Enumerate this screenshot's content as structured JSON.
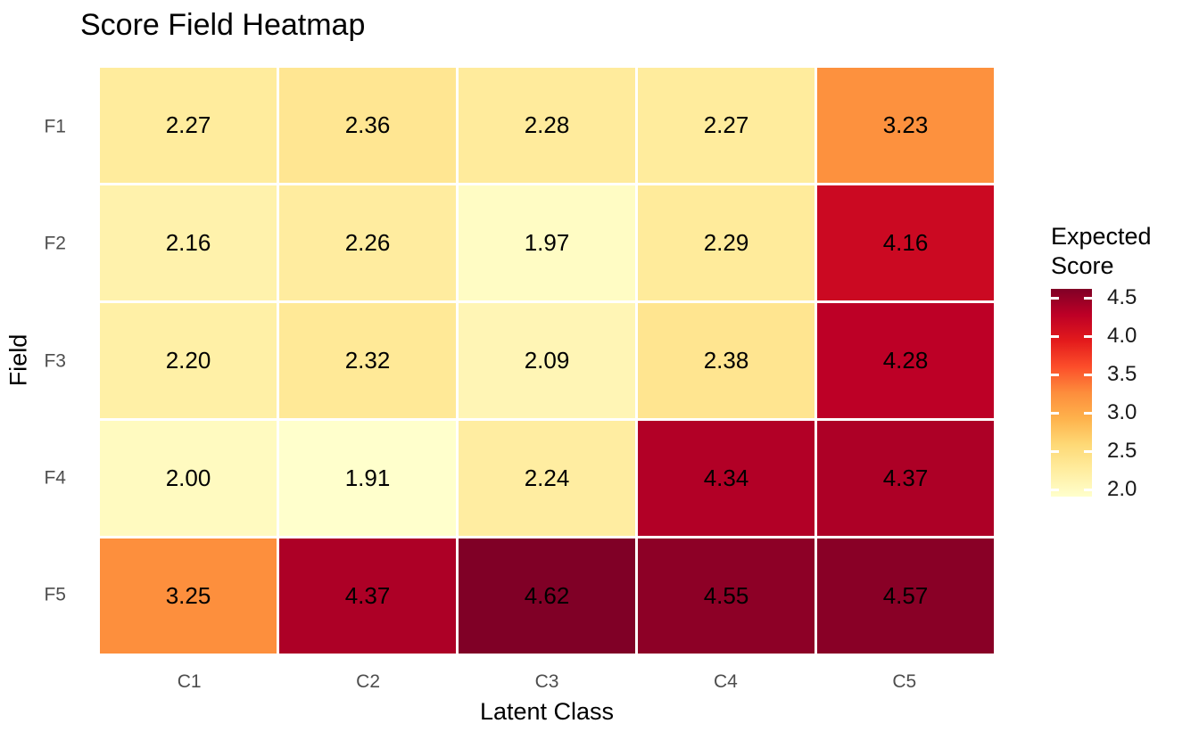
{
  "chart_data": {
    "type": "heatmap",
    "title": "Score Field Heatmap",
    "xlabel": "Latent Class",
    "ylabel": "Field",
    "x_categories": [
      "C1",
      "C2",
      "C3",
      "C4",
      "C5"
    ],
    "y_categories": [
      "F1",
      "F2",
      "F3",
      "F4",
      "F5"
    ],
    "values": [
      [
        2.27,
        2.36,
        2.28,
        2.27,
        3.23
      ],
      [
        2.16,
        2.26,
        1.97,
        2.29,
        4.16
      ],
      [
        2.2,
        2.32,
        2.09,
        2.38,
        4.28
      ],
      [
        2.0,
        1.91,
        2.24,
        4.34,
        4.37
      ],
      [
        3.25,
        4.37,
        4.62,
        4.55,
        4.57
      ]
    ],
    "value_decimals": 2,
    "color_domain": [
      1.91,
      4.62
    ],
    "colormap": {
      "name": "YlOrRd",
      "stops": [
        "#FFFFCC",
        "#FFEDA0",
        "#FED976",
        "#FEB24C",
        "#FD8D3C",
        "#FC4E2A",
        "#E31A1C",
        "#BD0026",
        "#800026"
      ]
    },
    "legend": {
      "title": "Expected Score",
      "position": "right",
      "ticks": [
        {
          "label": "4.5",
          "value": 4.5
        },
        {
          "label": "4.0",
          "value": 4.0
        },
        {
          "label": "3.5",
          "value": 3.5
        },
        {
          "label": "3.0",
          "value": 3.0
        },
        {
          "label": "2.5",
          "value": 2.5
        },
        {
          "label": "2.0",
          "value": 2.0
        }
      ]
    },
    "layout": {
      "grid": false,
      "panel_background": "none"
    },
    "colors": {
      "background": "#FFFFFF",
      "cell_border": "#FFFFFF",
      "tick_label_color": "#4D4D4D",
      "cell_text_color": "#000000",
      "title_color": "#000000"
    }
  }
}
